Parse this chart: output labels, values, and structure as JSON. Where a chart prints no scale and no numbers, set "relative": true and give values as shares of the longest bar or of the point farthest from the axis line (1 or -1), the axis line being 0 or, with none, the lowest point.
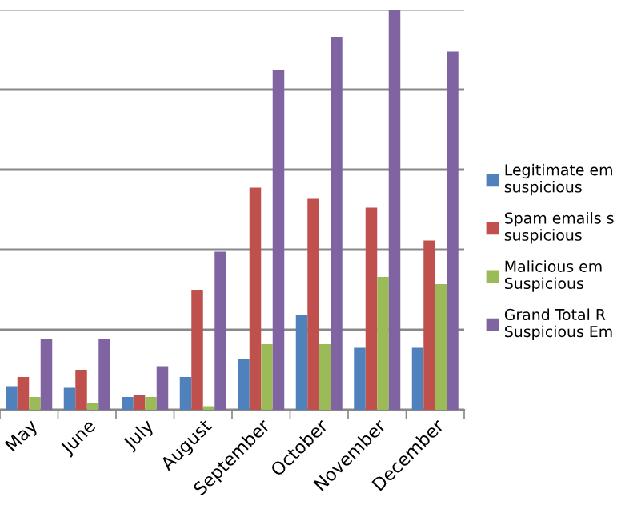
{
  "chart_data": {
    "type": "bar",
    "relative": true,
    "grid": "y",
    "legend": "right",
    "categories": [
      "May",
      "June",
      "July",
      "August",
      "September",
      "October",
      "November",
      "December"
    ],
    "series": [
      {
        "name": "Legitimate em\nsuspicious",
        "color": "#4f81bd",
        "values": [
          0.059,
          0.055,
          0.032,
          0.082,
          0.127,
          0.236,
          0.155,
          0.155
        ]
      },
      {
        "name": "Spam emails s\nsuspicious",
        "color": "#c0504d",
        "values": [
          0.082,
          0.1,
          0.036,
          0.3,
          0.555,
          0.527,
          0.505,
          0.423
        ]
      },
      {
        "name": "Malicious em\nSuspicious",
        "color": "#9bbb59",
        "values": [
          0.032,
          0.018,
          0.032,
          0.009,
          0.164,
          0.164,
          0.332,
          0.314
        ]
      },
      {
        "name": "Grand Total R\nSuspicious Em",
        "color": "#8064a2",
        "values": [
          0.177,
          0.177,
          0.109,
          0.395,
          0.85,
          0.932,
          1,
          0.895
        ]
      }
    ]
  }
}
